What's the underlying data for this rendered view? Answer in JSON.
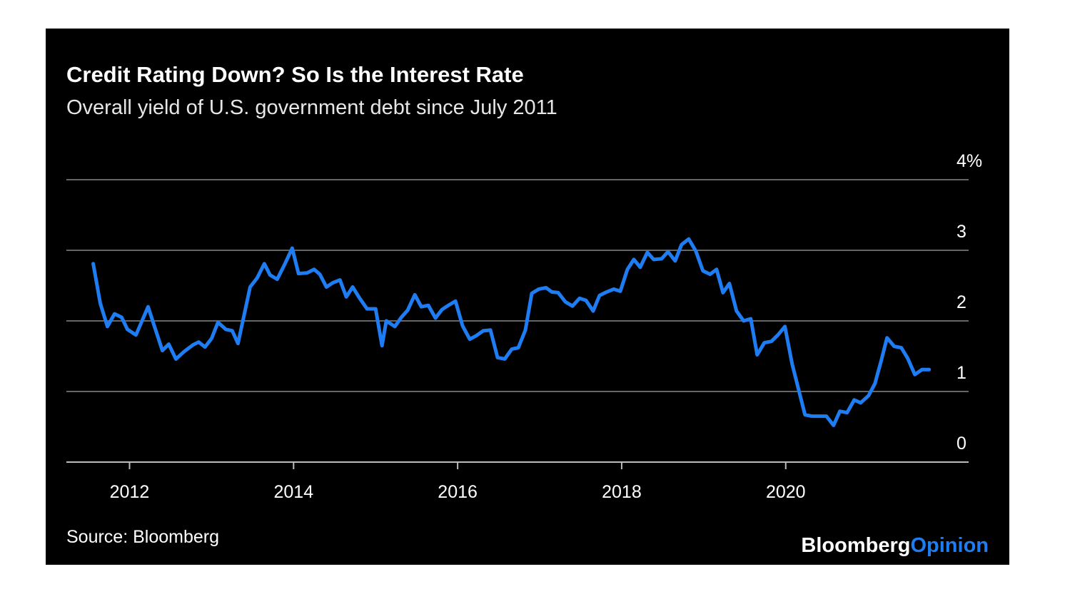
{
  "chart_data": {
    "type": "line",
    "title": "Credit Rating Down? So Is the Interest Rate",
    "subtitle": "Overall yield of U.S. government debt since July 2011",
    "source": "Source: Bloomberg",
    "brand": {
      "name": "Bloomberg",
      "section": "Opinion"
    },
    "xlim": [
      2011.23,
      2022.23
    ],
    "xticks": [
      2012,
      2014,
      2016,
      2018,
      2020
    ],
    "ylim": [
      0,
      4
    ],
    "yticks": [
      0,
      1,
      2,
      3,
      {
        "value": 4,
        "label": "4%"
      }
    ],
    "grid": true,
    "x": [
      2011.557,
      2011.643,
      2011.73,
      2011.817,
      2011.904,
      2011.974,
      2012.078,
      2012.226,
      2012.296,
      2012.4,
      2012.478,
      2012.565,
      2012.67,
      2012.774,
      2012.843,
      2012.92,
      2013.0,
      2013.078,
      2013.174,
      2013.252,
      2013.322,
      2013.4,
      2013.47,
      2013.557,
      2013.643,
      2013.713,
      2013.8,
      2013.887,
      2013.983,
      2014.06,
      2014.165,
      2014.25,
      2014.32,
      2014.4,
      2014.478,
      2014.565,
      2014.643,
      2014.72,
      2014.8,
      2014.896,
      2015.0,
      2015.078,
      2015.13,
      2015.235,
      2015.313,
      2015.39,
      2015.478,
      2015.557,
      2015.643,
      2015.73,
      2015.809,
      2015.887,
      2015.974,
      2016.06,
      2016.148,
      2016.226,
      2016.313,
      2016.4,
      2016.487,
      2016.574,
      2016.66,
      2016.74,
      2016.826,
      2016.904,
      2016.99,
      2017.078,
      2017.148,
      2017.226,
      2017.313,
      2017.4,
      2017.487,
      2017.565,
      2017.652,
      2017.73,
      2017.817,
      2017.904,
      2017.983,
      2018.07,
      2018.148,
      2018.226,
      2018.313,
      2018.39,
      2018.487,
      2018.565,
      2018.652,
      2018.73,
      2018.817,
      2018.904,
      2018.99,
      2019.078,
      2019.157,
      2019.235,
      2019.313,
      2019.4,
      2019.487,
      2019.574,
      2019.652,
      2019.739,
      2019.826,
      2019.904,
      2019.99,
      2020.078,
      2020.165,
      2020.235,
      2020.322,
      2020.409,
      2020.496,
      2020.583,
      2020.66,
      2020.748,
      2020.835,
      2020.913,
      2021.009,
      2021.087,
      2021.165,
      2021.235,
      2021.322,
      2021.409,
      2021.487,
      2021.574,
      2021.661,
      2021.748
    ],
    "series": [
      {
        "name": "Yield",
        "color": "#1f7df3",
        "values": [
          2.81,
          2.25,
          1.92,
          2.1,
          2.05,
          1.88,
          1.8,
          2.2,
          1.95,
          1.58,
          1.67,
          1.46,
          1.57,
          1.66,
          1.7,
          1.63,
          1.75,
          1.98,
          1.88,
          1.86,
          1.68,
          2.1,
          2.48,
          2.61,
          2.81,
          2.65,
          2.59,
          2.79,
          3.03,
          2.67,
          2.68,
          2.73,
          2.66,
          2.48,
          2.54,
          2.58,
          2.34,
          2.48,
          2.33,
          2.17,
          2.17,
          1.65,
          2.0,
          1.92,
          2.05,
          2.15,
          2.37,
          2.2,
          2.22,
          2.04,
          2.16,
          2.22,
          2.28,
          1.93,
          1.74,
          1.79,
          1.86,
          1.87,
          1.48,
          1.46,
          1.6,
          1.62,
          1.87,
          2.39,
          2.45,
          2.47,
          2.41,
          2.4,
          2.27,
          2.21,
          2.32,
          2.29,
          2.14,
          2.36,
          2.41,
          2.45,
          2.42,
          2.73,
          2.87,
          2.76,
          2.97,
          2.87,
          2.88,
          2.98,
          2.85,
          3.08,
          3.16,
          2.99,
          2.71,
          2.66,
          2.73,
          2.4,
          2.53,
          2.14,
          2.0,
          2.03,
          1.52,
          1.69,
          1.71,
          1.8,
          1.92,
          1.39,
          0.99,
          0.67,
          0.65,
          0.65,
          0.65,
          0.52,
          0.72,
          0.7,
          0.88,
          0.84,
          0.94,
          1.11,
          1.44,
          1.76,
          1.64,
          1.62,
          1.47,
          1.24,
          1.31,
          1.31
        ]
      }
    ]
  }
}
